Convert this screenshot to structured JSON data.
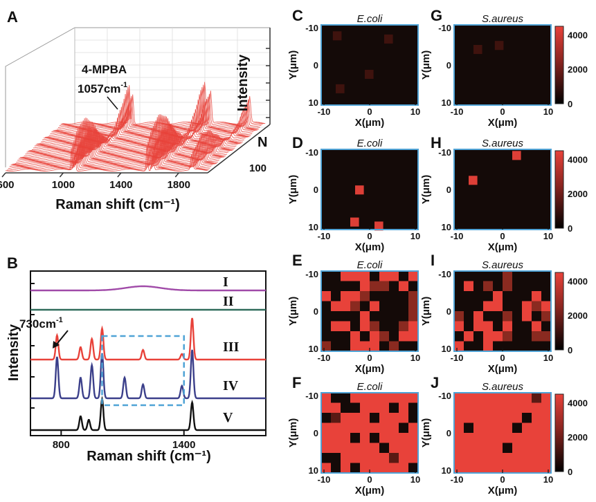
{
  "panel_letters": [
    "A",
    "B",
    "C",
    "D",
    "E",
    "F",
    "G",
    "H",
    "I",
    "J"
  ],
  "colors": {
    "red": "#e8423a",
    "dark": "#140a08",
    "border": "#4fa3d6"
  },
  "chart_data": [
    {
      "id": "A",
      "type": "line",
      "subtype": "3d-waterfall",
      "xlabel": "Raman shift (cm⁻¹)",
      "ylabel": "Intensity",
      "zlabel": "N",
      "x_ticks": [
        "600",
        "1000",
        "1400",
        "1800"
      ],
      "z_ticks": [
        "100"
      ],
      "xlim": [
        600,
        2000
      ],
      "annotation": {
        "line1": "4-MPBA",
        "line2": "1057cm",
        "sup": "-1"
      },
      "peaks_cm": [
        1057,
        1580,
        1890
      ]
    },
    {
      "id": "B",
      "type": "line",
      "xlabel": "Raman shift (cm⁻¹)",
      "ylabel": "Intensity",
      "x_ticks": [
        "800",
        "1400"
      ],
      "xlim": [
        650,
        1800
      ],
      "annotation": {
        "text": "730cm",
        "sup": "-1",
        "x": 730
      },
      "dashed_box_x": [
        1000,
        1400
      ],
      "series": [
        {
          "name": "I",
          "color": "#a04aa8",
          "peaks": [
            [
              1200,
              6
            ]
          ]
        },
        {
          "name": "II",
          "color": "#2f6b5a",
          "peaks": []
        },
        {
          "name": "III",
          "color": "#e8423a",
          "peaks": [
            [
              780,
              35
            ],
            [
              895,
              18
            ],
            [
              950,
              30
            ],
            [
              1000,
              45
            ],
            [
              1200,
              14
            ],
            [
              1390,
              8
            ],
            [
              1440,
              60
            ]
          ]
        },
        {
          "name": "IV",
          "color": "#3b3f8a",
          "peaks": [
            [
              780,
              60
            ],
            [
              895,
              30
            ],
            [
              950,
              48
            ],
            [
              1000,
              65
            ],
            [
              1110,
              30
            ],
            [
              1200,
              20
            ],
            [
              1390,
              18
            ],
            [
              1440,
              70
            ]
          ]
        },
        {
          "name": "V",
          "color": "#111111",
          "peaks": [
            [
              895,
              20
            ],
            [
              935,
              15
            ],
            [
              1000,
              45
            ],
            [
              1440,
              40
            ]
          ]
        }
      ]
    },
    {
      "id": "C",
      "type": "heatmap",
      "title": "E.coli",
      "xlabel": "X(μm)",
      "ylabel": "Y(μm)",
      "x_ticks": [
        "-10",
        "0",
        "10"
      ],
      "y_ticks": [
        "-10",
        "0",
        "10"
      ],
      "cells": [
        [
          0.12,
          0.08
        ],
        [
          0.65,
          0.12
        ],
        [
          0.45,
          0.56
        ],
        [
          0.15,
          0.74
        ]
      ],
      "fill": "dark"
    },
    {
      "id": "D",
      "type": "heatmap",
      "title": "E.coli",
      "xlabel": "X(μm)",
      "ylabel": "Y(μm)",
      "x_ticks": [
        "-10",
        "0",
        "10"
      ],
      "y_ticks": [
        "-10",
        "0",
        "10"
      ],
      "cells": [
        [
          0.35,
          0.45
        ],
        [
          0.3,
          0.85
        ],
        [
          0.55,
          0.9
        ]
      ],
      "fill": "dark"
    },
    {
      "id": "E",
      "type": "heatmap",
      "title": "E.coli",
      "xlabel": "X(μm)",
      "ylabel": "Y(μm)",
      "x_ticks": [
        "-10",
        "0",
        "10"
      ],
      "y_ticks": [
        "-10",
        "0",
        "10"
      ],
      "fill": "mixed",
      "density": 0.5,
      "seed": 11
    },
    {
      "id": "F",
      "type": "heatmap",
      "title": "E.coli",
      "xlabel": "X(μm)",
      "ylabel": "Y(μm)",
      "x_ticks": [
        "-10",
        "0",
        "10"
      ],
      "y_ticks": [
        "-10",
        "0",
        "10"
      ],
      "fill": "mostly-red",
      "density": 0.78,
      "seed": 23
    },
    {
      "id": "G",
      "type": "heatmap",
      "title": "S.aureus",
      "xlabel": "X(μm)",
      "ylabel": "Y(μm)",
      "x_ticks": [
        "-10",
        "0",
        "10"
      ],
      "y_ticks": [
        "-10",
        "0",
        "10"
      ],
      "cells": [
        [
          0.2,
          0.25
        ],
        [
          0.42,
          0.2
        ]
      ],
      "fill": "dark",
      "colorbar": {
        "ticks": [
          "4000",
          "2000",
          "0"
        ],
        "range": [
          0,
          4500
        ]
      }
    },
    {
      "id": "H",
      "type": "heatmap",
      "title": "S.aureus",
      "xlabel": "X(μm)",
      "ylabel": "Y(μm)",
      "x_ticks": [
        "-10",
        "0",
        "10"
      ],
      "y_ticks": [
        "-10",
        "0",
        "10"
      ],
      "cells": [
        [
          0.6,
          0.02
        ],
        [
          0.15,
          0.33
        ]
      ],
      "fill": "dark",
      "colorbar": {
        "ticks": [
          "4000",
          "2000",
          "0"
        ],
        "range": [
          0,
          4500
        ]
      }
    },
    {
      "id": "I",
      "type": "heatmap",
      "title": "S.aureus",
      "xlabel": "X(μm)",
      "ylabel": "Y(μm)",
      "x_ticks": [
        "-10",
        "0",
        "10"
      ],
      "y_ticks": [
        "-10",
        "0",
        "10"
      ],
      "fill": "mixed",
      "density": 0.48,
      "seed": 37,
      "colorbar": {
        "ticks": [
          "4000",
          "2000",
          "0"
        ],
        "range": [
          0,
          4500
        ]
      }
    },
    {
      "id": "J",
      "type": "heatmap",
      "title": "S.aureus",
      "xlabel": "X(μm)",
      "ylabel": "Y(μm)",
      "x_ticks": [
        "-10",
        "0",
        "10"
      ],
      "y_ticks": [
        "-10",
        "0",
        "10"
      ],
      "fill": "mostly-red",
      "density": 0.9,
      "seed": 5,
      "colorbar": {
        "ticks": [
          "4000",
          "2000",
          "0"
        ],
        "range": [
          0,
          4500
        ]
      }
    }
  ]
}
